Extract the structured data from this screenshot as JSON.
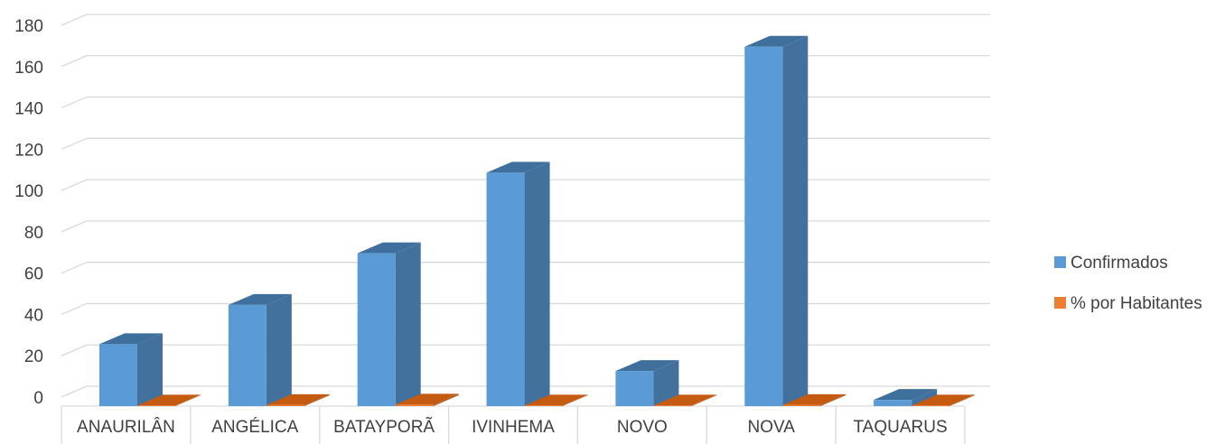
{
  "chart_data": {
    "type": "bar",
    "categories": [
      "ANAURILÂN",
      "ANGÉLICA",
      "BATAYPORÃ",
      "IVINHEMA",
      "NOVO",
      "NOVA",
      "TAQUARUS"
    ],
    "series": [
      {
        "name": "Confirmados",
        "values": [
          30,
          49,
          74,
          113,
          17,
          174,
          3
        ]
      },
      {
        "name": "% por Habitantes",
        "values": [
          0.2,
          0.5,
          0.7,
          0.3,
          0.1,
          0.5,
          0.1
        ]
      }
    ],
    "yticks": [
      "0",
      "20",
      "40",
      "60",
      "80",
      "100",
      "120",
      "140",
      "160",
      "180"
    ],
    "ylim": [
      0,
      200
    ],
    "grid": true,
    "legend_position": "right",
    "colors": {
      "series_0_front": "#5b9bd5",
      "series_0_side": "#41719c",
      "series_0_top": "#3f6f9c",
      "series_1_front": "#ed7d31",
      "series_1_side": "#ae5a21",
      "series_1_top": "#c55a11",
      "grid": "#d9d9d9",
      "text": "#404040"
    }
  }
}
